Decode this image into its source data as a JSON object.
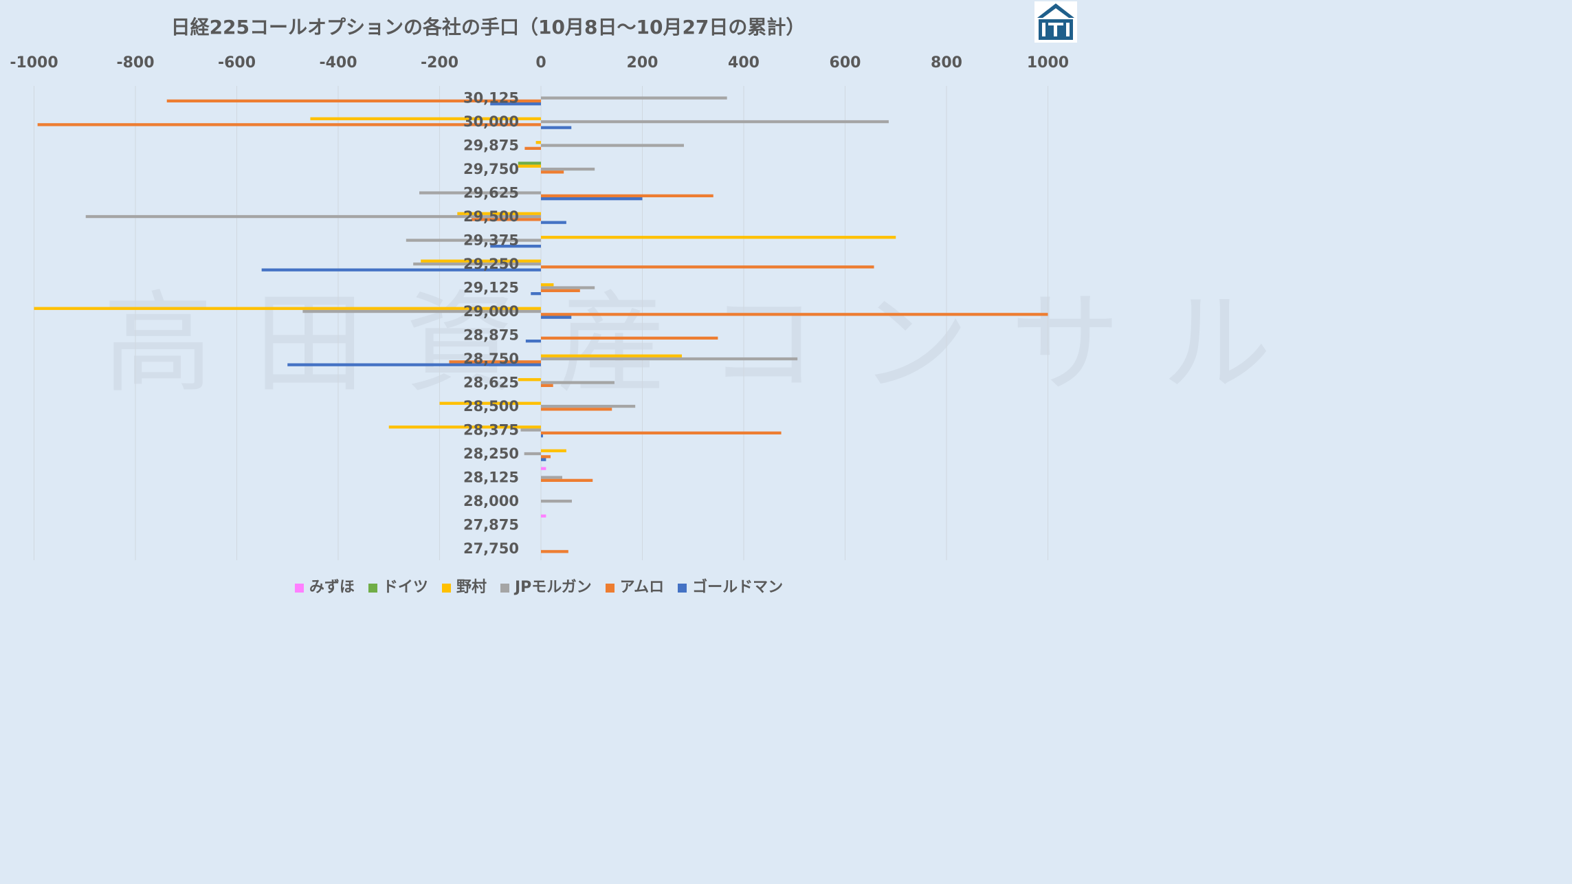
{
  "title": "日経225コールオプションの各社の手口（10月8日～10月27日の累計）",
  "watermark": "高田資産コンサル",
  "chart_data": {
    "type": "bar",
    "orientation": "horizontal",
    "xlim": [
      -1000,
      1000
    ],
    "xticks": [
      -1000,
      -800,
      -600,
      -400,
      -200,
      0,
      200,
      400,
      600,
      800,
      1000
    ],
    "xtick_labels": [
      "-1000",
      "-800",
      "-600",
      "-400",
      "-200",
      "0",
      "200",
      "400",
      "600",
      "800",
      "1000"
    ],
    "categories": [
      "30,125",
      "30,000",
      "29,875",
      "29,750",
      "29,625",
      "29,500",
      "29,375",
      "29,250",
      "29,125",
      "29,000",
      "28,875",
      "28,750",
      "28,625",
      "28,500",
      "28,375",
      "28,250",
      "28,125",
      "28,000",
      "27,875",
      "27,750"
    ],
    "series": [
      {
        "name": "みずほ",
        "color": "#ff80ff",
        "values": [
          0,
          0,
          0,
          0,
          0,
          0,
          0,
          0,
          0,
          0,
          0,
          0,
          0,
          0,
          0,
          0,
          10,
          0,
          10,
          0
        ]
      },
      {
        "name": "ドイツ",
        "color": "#70ad47",
        "values": [
          0,
          0,
          0,
          -45,
          0,
          0,
          0,
          0,
          0,
          0,
          0,
          0,
          0,
          0,
          0,
          0,
          0,
          0,
          0,
          0
        ]
      },
      {
        "name": "野村",
        "color": "#ffc000",
        "values": [
          0,
          -455,
          -10,
          -45,
          0,
          -165,
          700,
          -237,
          25,
          -1000,
          0,
          278,
          -45,
          -200,
          -300,
          50,
          0,
          0,
          0,
          0
        ]
      },
      {
        "name": "JPモルガン",
        "color": "#a5a5a5",
        "values": [
          367,
          686,
          282,
          106,
          -240,
          -898,
          -266,
          -252,
          106,
          -470,
          0,
          506,
          145,
          186,
          -40,
          -33,
          42,
          61,
          0,
          0
        ]
      },
      {
        "name": "アムロ",
        "color": "#ed7d31",
        "values": [
          -738,
          -993,
          -32,
          45,
          340,
          -137,
          0,
          657,
          77,
          1000,
          349,
          -181,
          24,
          140,
          474,
          19,
          102,
          0,
          0,
          54
        ]
      },
      {
        "name": "ゴールドマン",
        "color": "#4472c4",
        "values": [
          -100,
          60,
          0,
          0,
          200,
          50,
          -100,
          -551,
          -20,
          60,
          -30,
          -500,
          0,
          0,
          4,
          10,
          0,
          0,
          0,
          0
        ]
      }
    ]
  },
  "legend": {
    "items": [
      {
        "label": "みずほ",
        "color": "#ff80ff"
      },
      {
        "label": "ドイツ",
        "color": "#70ad47"
      },
      {
        "label": "野村",
        "color": "#ffc000"
      },
      {
        "label": "JPモルガン",
        "color": "#a5a5a5"
      },
      {
        "label": "アムロ",
        "color": "#ed7d31"
      },
      {
        "label": "ゴールドマン",
        "color": "#4472c4"
      }
    ]
  }
}
